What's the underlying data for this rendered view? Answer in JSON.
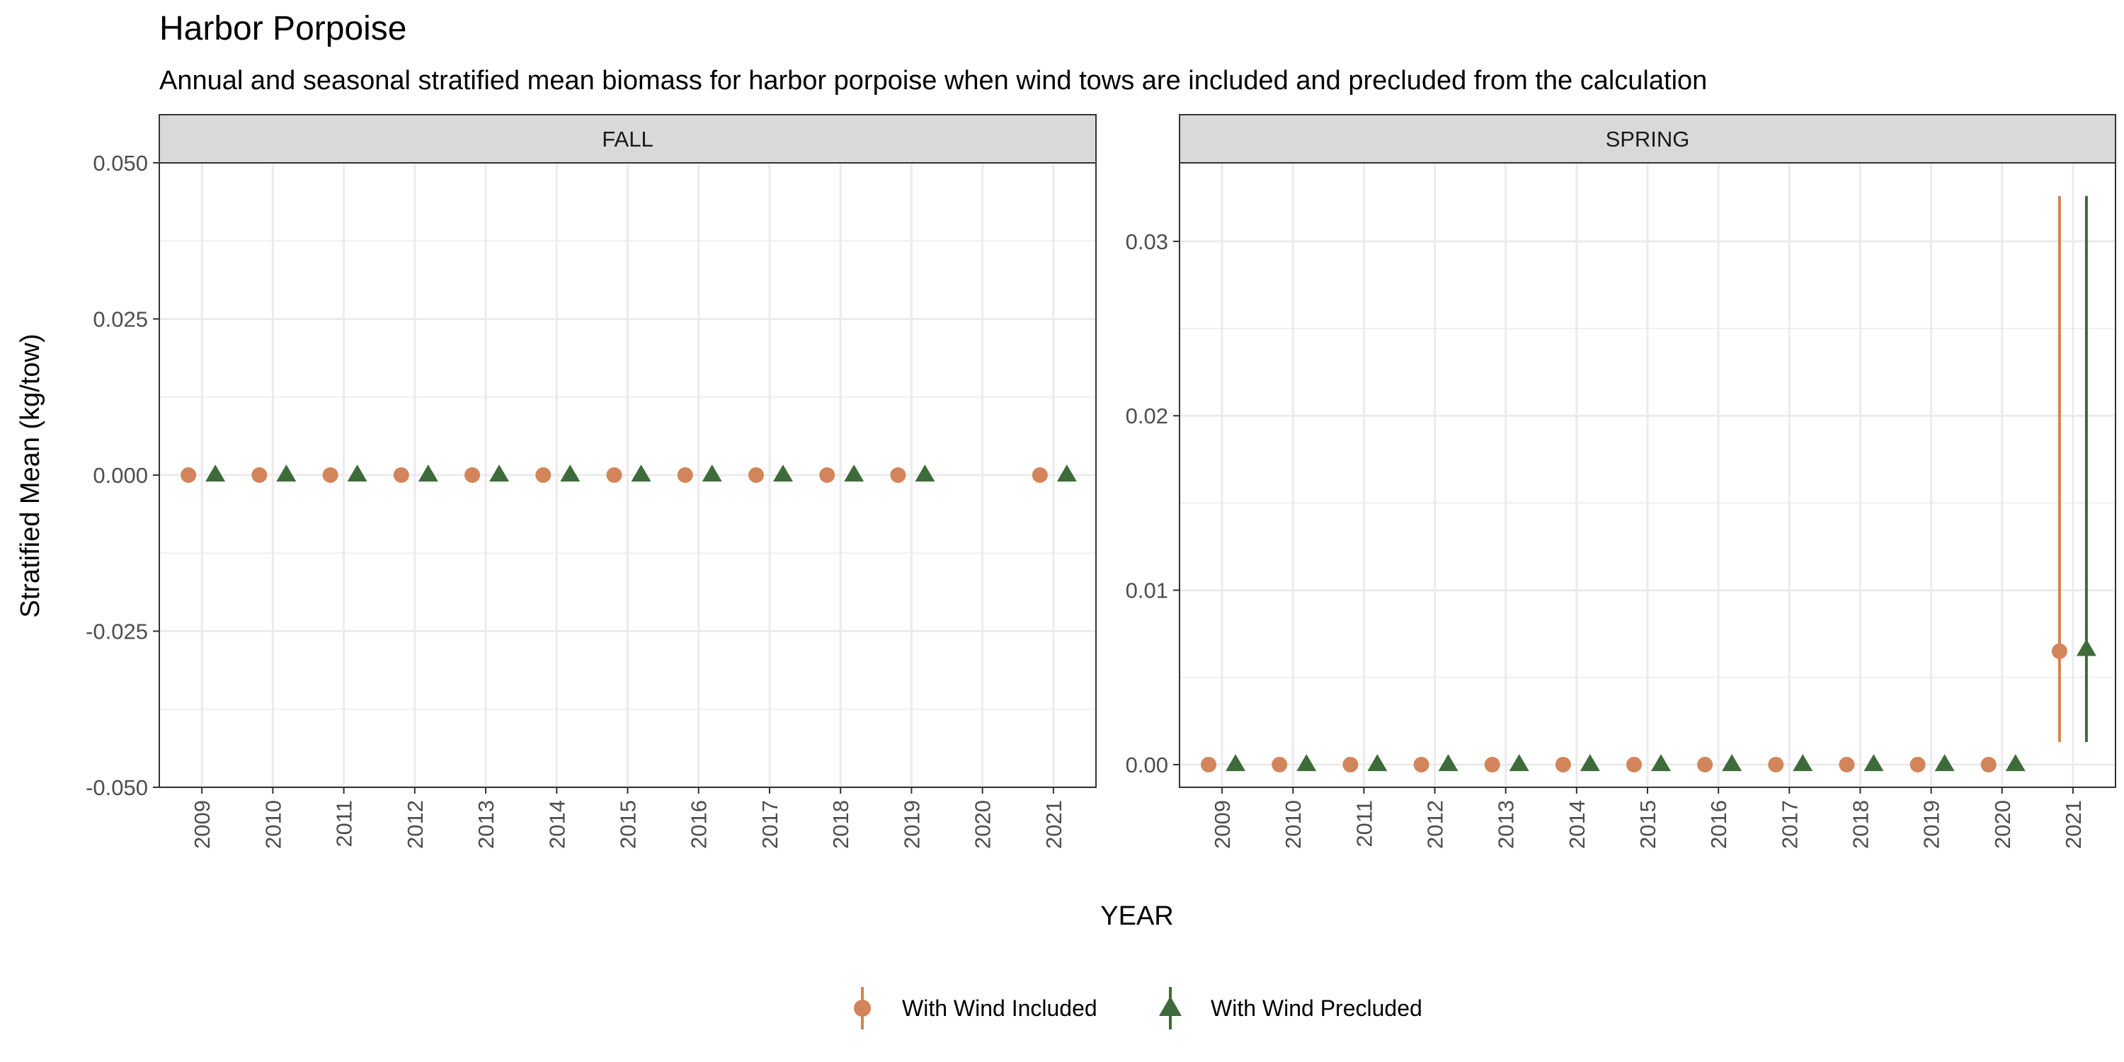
{
  "title": "Harbor Porpoise",
  "subtitle": "Annual and seasonal stratified mean biomass for harbor porpoise when wind tows are included and precluded from the calculation",
  "colors": {
    "with_wind_included": "#D2845A",
    "with_wind_precluded": "#3E6B3A",
    "strip_fill": "#D9D9D9",
    "grid": "#EBEBEB",
    "panel_border": "#333333"
  },
  "chart_data": {
    "type": "scatter",
    "xlabel": "YEAR",
    "ylabel": "Stratified Mean (kg/tow)",
    "grid": true,
    "legend_position": "bottom",
    "legend": [
      {
        "name": "With Wind Included",
        "shape": "circle",
        "color": "#D2845A"
      },
      {
        "name": "With Wind Precluded",
        "shape": "triangle",
        "color": "#3E6B3A"
      }
    ],
    "panels": [
      {
        "name": "FALL",
        "categories": [
          "2009",
          "2010",
          "2011",
          "2012",
          "2013",
          "2014",
          "2015",
          "2016",
          "2017",
          "2018",
          "2019",
          "2020",
          "2021"
        ],
        "ylim": [
          -0.05,
          0.05
        ],
        "yticks": [
          -0.05,
          -0.025,
          0,
          0.025,
          0.05
        ],
        "ytick_labels": [
          "-0.050",
          "-0.025",
          "0.000",
          "0.025",
          "0.050"
        ],
        "series": [
          {
            "name": "With Wind Included",
            "points": [
              {
                "x": "2009",
                "y": 0
              },
              {
                "x": "2010",
                "y": 0
              },
              {
                "x": "2011",
                "y": 0
              },
              {
                "x": "2012",
                "y": 0
              },
              {
                "x": "2013",
                "y": 0
              },
              {
                "x": "2014",
                "y": 0
              },
              {
                "x": "2015",
                "y": 0
              },
              {
                "x": "2016",
                "y": 0
              },
              {
                "x": "2017",
                "y": 0
              },
              {
                "x": "2018",
                "y": 0
              },
              {
                "x": "2019",
                "y": 0
              },
              {
                "x": "2021",
                "y": 0
              }
            ]
          },
          {
            "name": "With Wind Precluded",
            "points": [
              {
                "x": "2009",
                "y": 0
              },
              {
                "x": "2010",
                "y": 0
              },
              {
                "x": "2011",
                "y": 0
              },
              {
                "x": "2012",
                "y": 0
              },
              {
                "x": "2013",
                "y": 0
              },
              {
                "x": "2014",
                "y": 0
              },
              {
                "x": "2015",
                "y": 0
              },
              {
                "x": "2016",
                "y": 0
              },
              {
                "x": "2017",
                "y": 0
              },
              {
                "x": "2018",
                "y": 0
              },
              {
                "x": "2019",
                "y": 0
              },
              {
                "x": "2021",
                "y": 0
              }
            ]
          }
        ]
      },
      {
        "name": "SPRING",
        "categories": [
          "2009",
          "2010",
          "2011",
          "2012",
          "2013",
          "2014",
          "2015",
          "2016",
          "2017",
          "2018",
          "2019",
          "2020",
          "2021"
        ],
        "ylim": [
          -0.0013,
          0.0345
        ],
        "yticks": [
          0,
          0.01,
          0.02,
          0.03
        ],
        "ytick_labels": [
          "0.00",
          "0.01",
          "0.02",
          "0.03"
        ],
        "series": [
          {
            "name": "With Wind Included",
            "points": [
              {
                "x": "2009",
                "y": 0
              },
              {
                "x": "2010",
                "y": 0
              },
              {
                "x": "2011",
                "y": 0
              },
              {
                "x": "2012",
                "y": 0
              },
              {
                "x": "2013",
                "y": 0
              },
              {
                "x": "2014",
                "y": 0
              },
              {
                "x": "2015",
                "y": 0
              },
              {
                "x": "2016",
                "y": 0
              },
              {
                "x": "2017",
                "y": 0
              },
              {
                "x": "2018",
                "y": 0
              },
              {
                "x": "2019",
                "y": 0
              },
              {
                "x": "2020",
                "y": 0
              },
              {
                "x": "2021",
                "y": 0.0065,
                "ymin": 0.0013,
                "ymax": 0.0326
              }
            ]
          },
          {
            "name": "With Wind Precluded",
            "points": [
              {
                "x": "2009",
                "y": 0
              },
              {
                "x": "2010",
                "y": 0
              },
              {
                "x": "2011",
                "y": 0
              },
              {
                "x": "2012",
                "y": 0
              },
              {
                "x": "2013",
                "y": 0
              },
              {
                "x": "2014",
                "y": 0
              },
              {
                "x": "2015",
                "y": 0
              },
              {
                "x": "2016",
                "y": 0
              },
              {
                "x": "2017",
                "y": 0
              },
              {
                "x": "2018",
                "y": 0
              },
              {
                "x": "2019",
                "y": 0
              },
              {
                "x": "2020",
                "y": 0
              },
              {
                "x": "2021",
                "y": 0.0066,
                "ymin": 0.0013,
                "ymax": 0.0326
              }
            ]
          }
        ]
      }
    ]
  }
}
